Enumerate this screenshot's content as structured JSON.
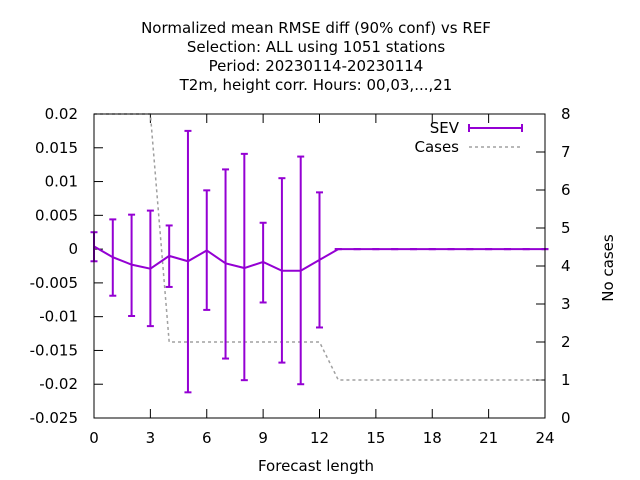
{
  "chart_data": {
    "type": "line",
    "title_lines": [
      "Normalized mean RMSE diff (90% conf) vs REF",
      "Selection: ALL using  1051 stations",
      "Period: 20230114-20230114",
      "T2m, height corr.    Hours:  00,03,...,21"
    ],
    "xlabel": "Forecast length",
    "ylabel": "",
    "y2label": "No cases",
    "xlim": [
      0,
      24
    ],
    "ylim": [
      -0.025,
      0.02
    ],
    "y2lim": [
      0,
      8
    ],
    "x_ticks": [
      0,
      3,
      6,
      9,
      12,
      15,
      18,
      21,
      24
    ],
    "x_tick_labels": [
      "0",
      "3",
      "6",
      "9",
      "12",
      "15",
      "18",
      "21",
      "24"
    ],
    "y_ticks": [
      0.02,
      0.015,
      0.01,
      0.005,
      0,
      -0.005,
      -0.01,
      -0.015,
      -0.02,
      -0.025
    ],
    "y_tick_labels": [
      "0.02",
      "0.015",
      "0.01",
      "0.005",
      "0",
      "-0.005",
      "-0.01",
      "-0.015",
      "-0.02",
      "-0.025"
    ],
    "y2_ticks": [
      8,
      7,
      6,
      5,
      4,
      3,
      2,
      1,
      0
    ],
    "y2_tick_labels": [
      "8",
      "7",
      "6",
      "5",
      "4",
      "3",
      "2",
      "1",
      "0"
    ],
    "legend_position": "top-right",
    "grid": false,
    "series": [
      {
        "name": "SEV",
        "color": "#9400d3",
        "style": "errorbars",
        "x": [
          0,
          1,
          2,
          3,
          4,
          5,
          6,
          7,
          8,
          9,
          10,
          11,
          12,
          13,
          14,
          15,
          16,
          17,
          18,
          19,
          20,
          21,
          22,
          23,
          24
        ],
        "values": [
          0.0004,
          -0.0012,
          -0.0023,
          -0.0029,
          -0.001,
          -0.0018,
          -0.0002,
          -0.0021,
          -0.0028,
          -0.0019,
          -0.0032,
          -0.0032,
          -0.0016,
          0,
          0,
          0,
          0,
          0,
          0,
          0,
          0,
          0,
          0,
          0,
          0
        ],
        "low": [
          -0.0018,
          -0.0069,
          -0.0099,
          -0.0114,
          -0.0056,
          -0.0212,
          -0.009,
          -0.0162,
          -0.0194,
          -0.0079,
          -0.0168,
          -0.02,
          -0.0116,
          0,
          0,
          0,
          0,
          0,
          0,
          0,
          0,
          0,
          0,
          0,
          0
        ],
        "high": [
          0.0025,
          0.0044,
          0.0051,
          0.0057,
          0.0035,
          0.0175,
          0.0087,
          0.0118,
          0.0141,
          0.0039,
          0.0105,
          0.0137,
          0.0084,
          0,
          0,
          0,
          0,
          0,
          0,
          0,
          0,
          0,
          0,
          0,
          0
        ]
      },
      {
        "name": "Cases",
        "color": "#a0a0a0",
        "style": "dashed",
        "axis": "y2",
        "x": [
          0,
          3,
          4,
          12,
          13,
          24
        ],
        "values": [
          8,
          8,
          2,
          2,
          1,
          1
        ]
      }
    ]
  }
}
